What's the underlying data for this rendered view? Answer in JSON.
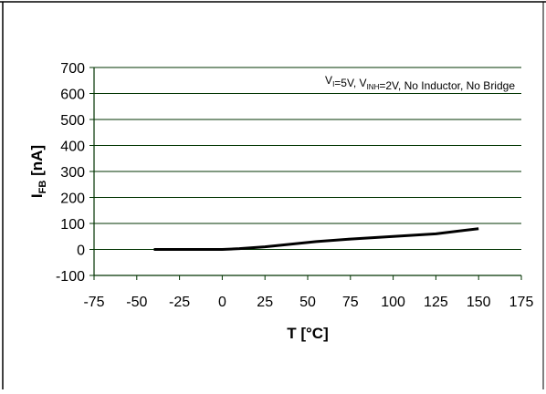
{
  "colors": {
    "axis": "#003300",
    "grid": "#003300",
    "series": "#000000",
    "border": "#000000"
  },
  "chart_data": {
    "type": "line",
    "title": "",
    "xlabel": "T [°C]",
    "ylabel": {
      "main": "I",
      "sub": "FB",
      "unit": " [nA]"
    },
    "xlim": [
      -75,
      175
    ],
    "ylim": [
      -100,
      700
    ],
    "xticks": [
      -75,
      -50,
      -25,
      0,
      25,
      50,
      75,
      100,
      125,
      150,
      175
    ],
    "yticks": [
      -100,
      0,
      100,
      200,
      300,
      400,
      500,
      600,
      700
    ],
    "grid": true,
    "annotation": {
      "parts": [
        {
          "text": "V",
          "sub": "I"
        },
        {
          "text": "=5V, V",
          "sub": "INH"
        },
        {
          "text": "=2V, No Inductor, No Bridge",
          "sub": ""
        }
      ]
    },
    "series": [
      {
        "x": [
          -40,
          -25,
          0,
          10,
          25,
          40,
          55,
          75,
          100,
          125,
          150
        ],
        "y": [
          0,
          0,
          0,
          3,
          10,
          20,
          30,
          40,
          50,
          60,
          80
        ]
      }
    ]
  }
}
